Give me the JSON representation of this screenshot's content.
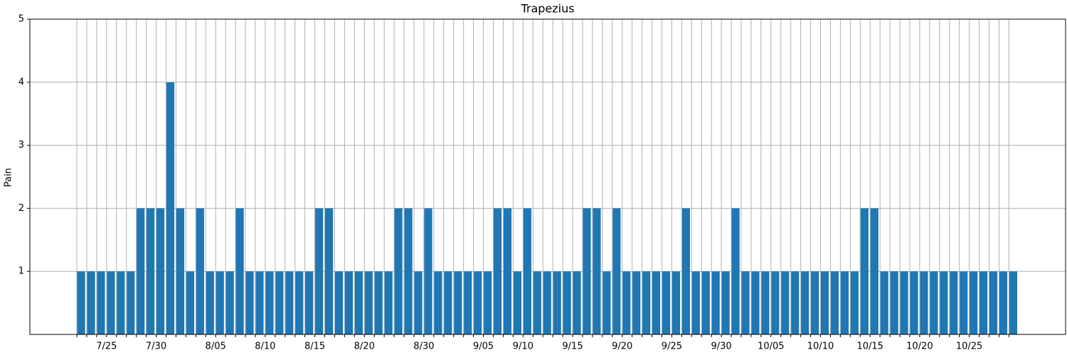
{
  "chart_data": {
    "type": "bar",
    "title": "Trapezius",
    "y_label": "Pain",
    "color": "#1f77b4",
    "grid": true,
    "categories": [
      null,
      null,
      null,
      "7/25",
      null,
      null,
      null,
      null,
      "7/30",
      null,
      null,
      null,
      null,
      null,
      "8/05",
      null,
      null,
      null,
      null,
      "8/10",
      null,
      null,
      null,
      null,
      "8/15",
      null,
      null,
      null,
      null,
      "8/20",
      null,
      null,
      null,
      null,
      null,
      "8/30",
      null,
      null,
      null,
      null,
      null,
      "9/05",
      null,
      null,
      null,
      "9/10",
      null,
      null,
      null,
      null,
      "9/15",
      null,
      null,
      null,
      null,
      "9/20",
      null,
      null,
      null,
      null,
      "9/25",
      null,
      null,
      null,
      null,
      "9/30",
      null,
      null,
      null,
      null,
      "10/05",
      null,
      null,
      null,
      null,
      "10/10",
      null,
      null,
      null,
      null,
      "10/15",
      null,
      null,
      null,
      null,
      "10/20",
      null,
      null,
      null,
      null,
      "10/25",
      null,
      null,
      null,
      null
    ],
    "values": [
      1,
      1,
      1,
      1,
      1,
      1,
      2,
      2,
      2,
      4,
      2,
      1,
      2,
      1,
      1,
      1,
      2,
      1,
      1,
      1,
      1,
      1,
      1,
      1,
      2,
      2,
      1,
      1,
      1,
      1,
      1,
      1,
      2,
      2,
      1,
      2,
      1,
      1,
      1,
      1,
      1,
      1,
      2,
      2,
      1,
      2,
      1,
      1,
      1,
      1,
      1,
      2,
      2,
      1,
      2,
      1,
      1,
      1,
      1,
      1,
      1,
      2,
      1,
      1,
      1,
      1,
      2,
      1,
      1,
      1,
      1,
      1,
      1,
      1,
      1,
      1,
      1,
      1,
      1,
      2,
      2,
      1,
      1,
      1,
      1,
      1,
      1,
      1,
      1,
      1,
      1,
      1,
      1,
      1,
      1
    ],
    "ylim": [
      0,
      5
    ],
    "yticks": [
      1,
      2,
      3,
      4,
      5
    ]
  }
}
